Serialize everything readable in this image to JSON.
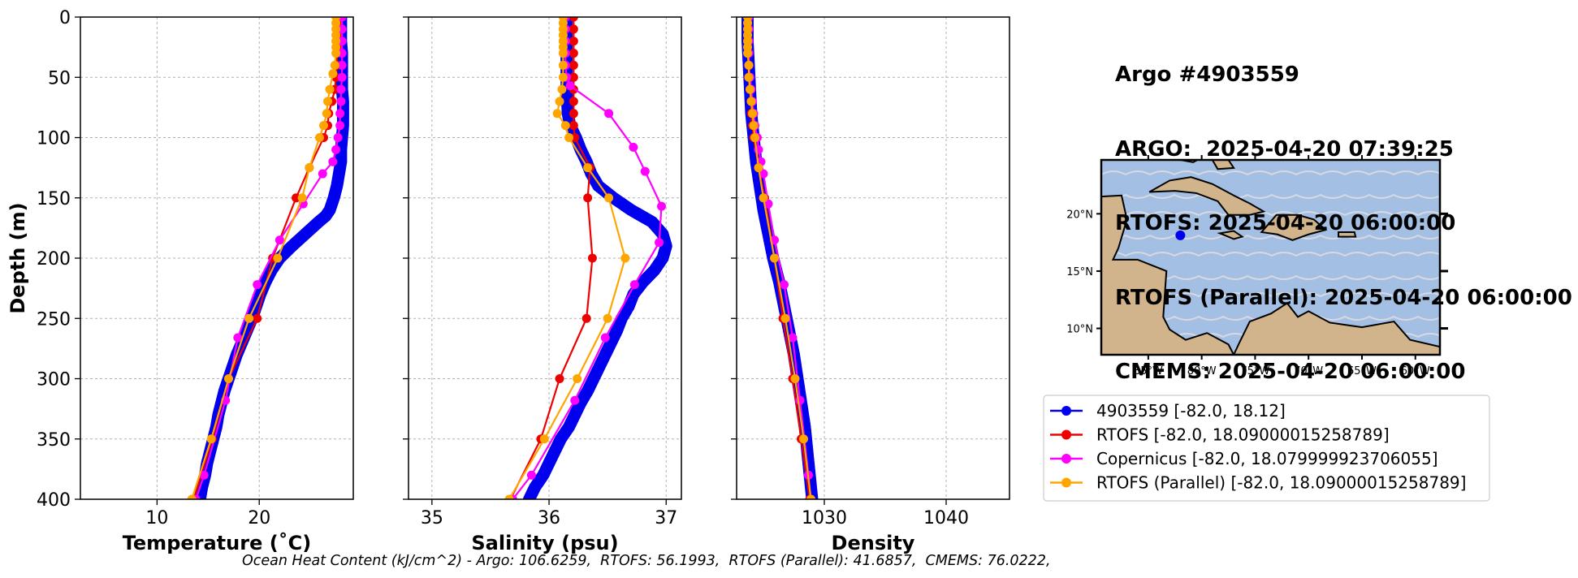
{
  "figure": {
    "info_lines": [
      "Argo #4903559",
      "ARGO:  2025-04-20 07:39:25",
      "RTOFS: 2025-04-20 06:00:00",
      "RTOFS (Parallel): 2025-04-20 06:00:00",
      "CMEMS: 2025-04-20 06:00:00"
    ],
    "footer": "Ocean Heat Content (kJ/cm^2) - Argo: 106.6259,  RTOFS: 56.1993,  RTOFS (Parallel): 41.6857,  CMEMS: 76.0222,"
  },
  "colors": {
    "argo": "#0000ee",
    "rtofs": "#ee0000",
    "copernicus": "#ff00ff",
    "rtofs_parallel": "#ffa500",
    "ocean": "#a3bfe4",
    "land": "#d2b48c",
    "grid": "#b0b0b0"
  },
  "legend": [
    {
      "label": "4903559 [-82.0, 18.12]",
      "color": "#0000ee"
    },
    {
      "label": "RTOFS [-82.0, 18.09000015258789]",
      "color": "#ee0000"
    },
    {
      "label": "Copernicus [-82.0, 18.079999923706055]",
      "color": "#ff00ff"
    },
    {
      "label": "RTOFS (Parallel) [-82.0, 18.09000015258789]",
      "color": "#ffa500"
    }
  ],
  "map": {
    "lon_ticks": [
      "85°W",
      "80°W",
      "75°W",
      "70°W",
      "65°W",
      "60°W"
    ],
    "lat_ticks": [
      "20°N",
      "15°N",
      "10°N"
    ],
    "float_position": {
      "lon": -82.0,
      "lat": 18.12
    }
  },
  "chart_data": [
    {
      "type": "line",
      "xlabel": "Temperature (˚C)",
      "ylabel": "Depth (m)",
      "xlim": [
        2.5,
        29.2
      ],
      "ylim": [
        400,
        0
      ],
      "xticks": [
        "10",
        "20"
      ],
      "xtick_values": [
        10,
        20
      ],
      "yticks": [
        "0",
        "50",
        "100",
        "150",
        "200",
        "250",
        "300",
        "350",
        "400"
      ],
      "ytick_values": [
        0,
        50,
        100,
        150,
        200,
        250,
        300,
        350,
        400
      ],
      "grid": true,
      "series": [
        {
          "key": "argo",
          "depth": [
            0,
            10,
            20,
            30,
            40,
            50,
            60,
            70,
            80,
            90,
            100,
            110,
            120,
            130,
            140,
            150,
            160,
            165,
            170,
            180,
            190,
            200,
            210,
            220,
            230,
            240,
            250,
            260,
            270,
            280,
            290,
            300,
            310,
            320,
            330,
            340,
            350,
            360,
            370,
            380,
            390,
            400
          ],
          "values": [
            28.0,
            28.0,
            28.0,
            28.1,
            28.1,
            28.1,
            28.1,
            28.2,
            28.2,
            28.2,
            28.1,
            28.0,
            28.0,
            27.8,
            27.6,
            27.3,
            26.9,
            26.5,
            25.8,
            24.5,
            23.2,
            22.0,
            21.2,
            20.6,
            20.1,
            19.7,
            19.3,
            18.8,
            18.3,
            17.8,
            17.4,
            17.0,
            16.6,
            16.3,
            16.0,
            15.8,
            15.5,
            15.2,
            14.9,
            14.7,
            14.4,
            14.2
          ]
        },
        {
          "key": "rtofs",
          "depth": [
            0,
            5,
            10,
            15,
            20,
            25,
            30,
            40,
            50,
            60,
            70,
            80,
            90,
            100,
            125,
            150,
            200,
            250,
            300,
            350,
            400
          ],
          "values": [
            27.6,
            27.6,
            27.6,
            27.6,
            27.6,
            27.6,
            27.6,
            27.6,
            27.5,
            27.4,
            27.1,
            26.8,
            26.7,
            26.3,
            24.9,
            23.6,
            21.3,
            19.8,
            17.0,
            15.4,
            13.6
          ]
        },
        {
          "key": "copernicus",
          "depth": [
            0,
            10,
            20,
            30,
            40,
            50,
            60,
            70,
            80,
            90,
            100,
            110,
            120,
            130,
            155,
            185,
            222,
            266,
            318,
            380,
            400
          ],
          "values": [
            28.1,
            28.1,
            28.1,
            28.1,
            28.1,
            28.1,
            28.0,
            28.0,
            27.9,
            27.9,
            27.7,
            27.5,
            27.2,
            26.2,
            24.3,
            22.0,
            19.8,
            17.9,
            16.7,
            14.6,
            13.8
          ]
        },
        {
          "key": "rtofs_parallel",
          "depth": [
            0,
            5,
            10,
            15,
            20,
            25,
            30,
            40,
            47,
            60,
            70,
            80,
            90,
            100,
            125,
            150,
            200,
            250,
            300,
            350,
            400
          ],
          "values": [
            27.5,
            27.5,
            27.5,
            27.5,
            27.5,
            27.5,
            27.5,
            27.4,
            27.2,
            26.9,
            26.7,
            26.6,
            26.3,
            25.9,
            24.9,
            24.2,
            21.8,
            19.0,
            17.0,
            15.3,
            13.4
          ]
        }
      ]
    },
    {
      "type": "line",
      "xlabel": "Salinity (psu)",
      "ylabel": "",
      "xlim": [
        34.8,
        37.13
      ],
      "ylim": [
        400,
        0
      ],
      "xticks": [
        "35",
        "36",
        "37"
      ],
      "xtick_values": [
        35,
        36,
        37
      ],
      "yticks": [],
      "ytick_values": [
        0,
        50,
        100,
        150,
        200,
        250,
        300,
        350,
        400
      ],
      "grid": true,
      "series": [
        {
          "key": "argo",
          "depth": [
            0,
            20,
            40,
            60,
            80,
            90,
            100,
            110,
            120,
            130,
            140,
            150,
            160,
            170,
            180,
            190,
            200,
            210,
            220,
            230,
            240,
            250,
            260,
            270,
            280,
            290,
            300,
            310,
            320,
            330,
            340,
            350,
            360,
            370,
            380,
            390,
            400
          ],
          "values": [
            36.15,
            36.15,
            36.15,
            36.15,
            36.16,
            36.18,
            36.23,
            36.27,
            36.32,
            36.36,
            36.42,
            36.55,
            36.7,
            36.88,
            36.97,
            37.0,
            36.97,
            36.9,
            36.8,
            36.72,
            36.68,
            36.62,
            36.58,
            36.53,
            36.48,
            36.43,
            36.38,
            36.33,
            36.27,
            36.22,
            36.17,
            36.1,
            36.05,
            36.0,
            35.95,
            35.88,
            35.83
          ]
        },
        {
          "key": "rtofs",
          "depth": [
            0,
            10,
            20,
            30,
            40,
            50,
            60,
            70,
            80,
            90,
            100,
            125,
            150,
            200,
            250,
            300,
            350,
            400
          ],
          "values": [
            36.21,
            36.21,
            36.21,
            36.21,
            36.21,
            36.21,
            36.21,
            36.21,
            36.21,
            36.21,
            36.22,
            36.35,
            36.33,
            36.37,
            36.32,
            36.09,
            35.93,
            35.67
          ]
        },
        {
          "key": "copernicus",
          "depth": [
            0,
            10,
            20,
            30,
            40,
            50,
            57,
            80,
            108,
            128,
            157,
            187,
            222,
            266,
            318,
            380,
            400
          ],
          "values": [
            36.14,
            36.14,
            36.14,
            36.14,
            36.14,
            36.15,
            36.18,
            36.51,
            36.72,
            36.82,
            36.96,
            36.94,
            36.73,
            36.48,
            36.22,
            35.85,
            35.69
          ]
        },
        {
          "key": "rtofs_parallel",
          "depth": [
            0,
            5,
            10,
            15,
            20,
            25,
            30,
            40,
            50,
            60,
            70,
            80,
            90,
            100,
            125,
            150,
            200,
            250,
            300,
            350,
            400
          ],
          "values": [
            36.12,
            36.12,
            36.12,
            36.12,
            36.12,
            36.12,
            36.12,
            36.12,
            36.12,
            36.11,
            36.09,
            36.07,
            36.14,
            36.17,
            36.33,
            36.51,
            36.65,
            36.5,
            36.24,
            35.96,
            35.66
          ]
        }
      ]
    },
    {
      "type": "line",
      "xlabel": "Density",
      "ylabel": "",
      "xlim": [
        1022.8,
        1045.2
      ],
      "ylim": [
        400,
        0
      ],
      "xticks": [
        "1030",
        "1040"
      ],
      "xtick_values": [
        1030,
        1040
      ],
      "yticks": [],
      "ytick_values": [
        0,
        50,
        100,
        150,
        200,
        250,
        300,
        350,
        400
      ],
      "grid": true,
      "series": [
        {
          "key": "argo",
          "depth": [
            0,
            20,
            40,
            60,
            80,
            100,
            120,
            140,
            160,
            180,
            200,
            220,
            240,
            260,
            280,
            300,
            320,
            340,
            360,
            380,
            400
          ],
          "values": [
            1023.7,
            1023.7,
            1023.8,
            1023.9,
            1024.0,
            1024.2,
            1024.4,
            1024.7,
            1025.0,
            1025.4,
            1025.8,
            1026.3,
            1026.7,
            1027.1,
            1027.5,
            1027.8,
            1028.1,
            1028.4,
            1028.6,
            1028.8,
            1029.0
          ]
        },
        {
          "key": "rtofs",
          "depth": [
            0,
            10,
            20,
            30,
            40,
            50,
            60,
            70,
            80,
            90,
            100,
            125,
            150,
            200,
            250,
            300,
            350,
            400
          ],
          "values": [
            1023.8,
            1023.8,
            1023.8,
            1023.8,
            1023.8,
            1023.8,
            1023.9,
            1024.0,
            1024.0,
            1024.1,
            1024.2,
            1024.6,
            1025.1,
            1025.9,
            1026.6,
            1027.4,
            1028.1,
            1028.8
          ]
        },
        {
          "key": "copernicus",
          "depth": [
            0,
            10,
            20,
            30,
            40,
            50,
            60,
            70,
            80,
            90,
            100,
            110,
            120,
            130,
            155,
            185,
            222,
            266,
            318,
            380,
            400
          ],
          "values": [
            1023.8,
            1023.8,
            1023.8,
            1023.8,
            1023.8,
            1023.9,
            1024.0,
            1024.1,
            1024.2,
            1024.3,
            1024.5,
            1024.6,
            1024.8,
            1025.0,
            1025.4,
            1025.9,
            1026.7,
            1027.4,
            1028.0,
            1028.7,
            1028.9
          ]
        },
        {
          "key": "rtofs_parallel",
          "depth": [
            0,
            5,
            10,
            15,
            20,
            25,
            30,
            40,
            50,
            60,
            70,
            80,
            90,
            100,
            125,
            150,
            200,
            250,
            300,
            350,
            400
          ],
          "values": [
            1023.7,
            1023.7,
            1023.7,
            1023.7,
            1023.7,
            1023.7,
            1023.7,
            1023.8,
            1023.8,
            1023.9,
            1024.0,
            1024.1,
            1024.2,
            1024.3,
            1024.6,
            1025.0,
            1025.9,
            1026.8,
            1027.6,
            1028.3,
            1028.9
          ]
        }
      ]
    }
  ]
}
